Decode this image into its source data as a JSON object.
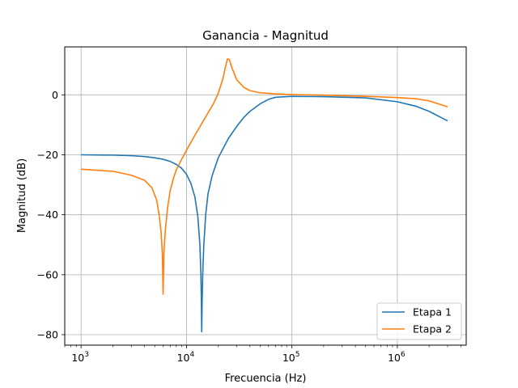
{
  "chart_data": {
    "type": "line",
    "title": "Ganancia - Magnitud",
    "xlabel": "Frecuencia (Hz)",
    "ylabel": "Magnitud (dB)",
    "xscale": "log",
    "xlim": [
      700,
      4500000
    ],
    "ylim": [
      -83.5,
      16
    ],
    "grid": true,
    "legend_position": "bottom-right",
    "x_ticks": [
      {
        "value": 1000,
        "base": "10",
        "exp": "3"
      },
      {
        "value": 10000,
        "base": "10",
        "exp": "4"
      },
      {
        "value": 100000,
        "base": "10",
        "exp": "5"
      },
      {
        "value": 1000000,
        "base": "10",
        "exp": "6"
      }
    ],
    "y_ticks": [
      {
        "value": 0,
        "label": "0"
      },
      {
        "value": -20,
        "label": "−20"
      },
      {
        "value": -40,
        "label": "−40"
      },
      {
        "value": -60,
        "label": "−60"
      },
      {
        "value": -80,
        "label": "−80"
      }
    ],
    "series": [
      {
        "name": "Etapa 1",
        "color": "#1f77b4",
        "points": [
          [
            1000,
            -20.0
          ],
          [
            2000,
            -20.1
          ],
          [
            3000,
            -20.3
          ],
          [
            4000,
            -20.6
          ],
          [
            5000,
            -21.0
          ],
          [
            6000,
            -21.5
          ],
          [
            7000,
            -22.2
          ],
          [
            8000,
            -23.2
          ],
          [
            9000,
            -24.5
          ],
          [
            10000,
            -26.5
          ],
          [
            11000,
            -29.5
          ],
          [
            12000,
            -34.0
          ],
          [
            12800,
            -40.5
          ],
          [
            13400,
            -50.0
          ],
          [
            13700,
            -60.0
          ],
          [
            13850,
            -70.0
          ],
          [
            13950,
            -79.0
          ],
          [
            14050,
            -70.0
          ],
          [
            14250,
            -60.0
          ],
          [
            14600,
            -50.0
          ],
          [
            15200,
            -40.0
          ],
          [
            16000,
            -33.0
          ],
          [
            17500,
            -27.0
          ],
          [
            20000,
            -21.0
          ],
          [
            25000,
            -14.5
          ],
          [
            30000,
            -10.5
          ],
          [
            35000,
            -7.5
          ],
          [
            40000,
            -5.5
          ],
          [
            50000,
            -3.0
          ],
          [
            60000,
            -1.5
          ],
          [
            70000,
            -0.8
          ],
          [
            100000,
            -0.5
          ],
          [
            200000,
            -0.6
          ],
          [
            500000,
            -1.0
          ],
          [
            1000000,
            -2.3
          ],
          [
            1500000,
            -3.8
          ],
          [
            2000000,
            -5.5
          ],
          [
            3000000,
            -8.7
          ]
        ]
      },
      {
        "name": "Etapa 2",
        "color": "#ff7f0e",
        "points": [
          [
            1000,
            -24.8
          ],
          [
            2000,
            -25.5
          ],
          [
            3000,
            -26.8
          ],
          [
            4000,
            -28.5
          ],
          [
            4700,
            -31.0
          ],
          [
            5200,
            -35.0
          ],
          [
            5500,
            -40.0
          ],
          [
            5750,
            -46.0
          ],
          [
            5900,
            -53.0
          ],
          [
            6000,
            -66.5
          ],
          [
            6100,
            -53.0
          ],
          [
            6300,
            -45.0
          ],
          [
            6600,
            -38.0
          ],
          [
            7000,
            -32.0
          ],
          [
            7500,
            -28.0
          ],
          [
            8000,
            -25.0
          ],
          [
            9000,
            -21.5
          ],
          [
            10000,
            -18.5
          ],
          [
            12000,
            -13.5
          ],
          [
            14000,
            -9.5
          ],
          [
            16000,
            -6.0
          ],
          [
            18000,
            -3.0
          ],
          [
            20000,
            0.5
          ],
          [
            22000,
            5.0
          ],
          [
            23500,
            9.5
          ],
          [
            24500,
            12.0
          ],
          [
            25500,
            11.8
          ],
          [
            27000,
            9.0
          ],
          [
            30000,
            5.0
          ],
          [
            35000,
            2.5
          ],
          [
            40000,
            1.4
          ],
          [
            50000,
            0.7
          ],
          [
            70000,
            0.3
          ],
          [
            100000,
            0.1
          ],
          [
            200000,
            -0.1
          ],
          [
            500000,
            -0.5
          ],
          [
            1000000,
            -0.9
          ],
          [
            1500000,
            -1.3
          ],
          [
            2000000,
            -2.0
          ],
          [
            3000000,
            -4.0
          ]
        ]
      }
    ]
  }
}
